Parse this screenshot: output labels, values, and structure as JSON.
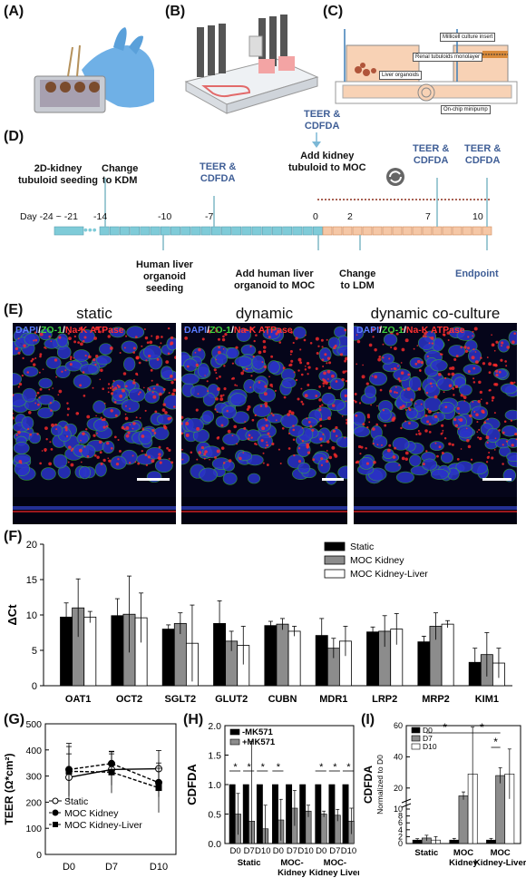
{
  "panels": {
    "a": "(A)",
    "b": "(B)",
    "c": "(C)",
    "d": "(D)",
    "e": "(E)",
    "f": "(F)",
    "g": "(G)",
    "h": "(H)",
    "i": "(I)"
  },
  "panel_c": {
    "millicell": "Millicell culture insert",
    "renal": "Renal tubuloids monolayer",
    "liver": "Liver organoids",
    "pump": "On-chip minipump"
  },
  "timeline": {
    "teer_top": "TEER &\nCDFDA",
    "add_kidney": "Add kidney\ntubuloid to MOC",
    "seeding_2d": "2D-kidney\ntubuloid seeding",
    "change_kdm": "Change\nto KDM",
    "teer_mid": "TEER &\nCDFDA",
    "teer_d7": "TEER &\nCDFDA",
    "teer_d10": "TEER &\nCDFDA",
    "day_label": "Day -24 ~ -21",
    "days": [
      "-14",
      "-10",
      "-7",
      "0",
      "2",
      "7",
      "10"
    ],
    "human_liver_seeding": "Human liver\norganoid\nseeding",
    "add_liver": "Add human liver\norganoid to MOC",
    "change_ldm": "Change\nto LDM",
    "endpoint": "Endpoint",
    "colors": {
      "kdm": "#7fcbd8",
      "ldm": "#f5c7a6",
      "teer": "#3f5e96",
      "endpoint": "#3f5e96"
    }
  },
  "panel_e": {
    "titles": [
      "static",
      "dynamic",
      "dynamic co-culture"
    ],
    "stain_dapi": "DAPI",
    "stain_sep": "/",
    "stain_zo": "ZO-1",
    "stain_na": "Na-K ATPase"
  },
  "chart_data": [
    {
      "id": "F",
      "type": "bar",
      "ylabel": "ΔCt",
      "ylim": [
        0,
        20
      ],
      "yticks": [
        0,
        5,
        10,
        15,
        20
      ],
      "categories": [
        "OAT1",
        "OCT2",
        "SGLT2",
        "GLUT2",
        "CUBN",
        "MDR1",
        "LRP2",
        "MRP2",
        "KIM1"
      ],
      "series": [
        {
          "name": "Static",
          "color": "#000000",
          "values": [
            9.7,
            9.9,
            8.0,
            8.8,
            8.5,
            7.1,
            7.6,
            6.2,
            3.3
          ],
          "err": [
            2.0,
            2.4,
            0.6,
            3.2,
            0.6,
            2.4,
            0.7,
            0.8,
            2.0
          ]
        },
        {
          "name": "MOC Kidney",
          "color": "#8c8c8c",
          "values": [
            11.0,
            10.1,
            8.8,
            6.3,
            8.7,
            5.3,
            7.7,
            8.4,
            4.4
          ],
          "err": [
            4.1,
            5.4,
            1.5,
            1.4,
            0.8,
            1.4,
            2.2,
            1.9,
            3.1
          ]
        },
        {
          "name": "MOC Kidney-Liver",
          "color": "#ffffff",
          "values": [
            9.7,
            9.6,
            6.0,
            5.7,
            7.7,
            6.3,
            8.0,
            8.7,
            3.2
          ],
          "err": [
            0.8,
            3.5,
            5.4,
            2.7,
            0.7,
            2.1,
            2.2,
            0.5,
            2.1
          ]
        }
      ],
      "legend": "top-right"
    },
    {
      "id": "G",
      "type": "line",
      "ylabel": "TEER (Ω*cm²)",
      "ylim": [
        0,
        500
      ],
      "yticks": [
        0,
        100,
        200,
        300,
        400,
        500
      ],
      "categories": [
        "D0",
        "D7",
        "D10"
      ],
      "series": [
        {
          "name": "Static",
          "values": [
            295,
            325,
            328
          ],
          "err": [
            90,
            60,
            70
          ],
          "marker": "open-circle",
          "dash": false
        },
        {
          "name": "MOC Kidney",
          "values": [
            325,
            348,
            275
          ],
          "err": [
            100,
            45,
            55
          ],
          "marker": "filled-circle",
          "dash": true
        },
        {
          "name": "MOC Kidney-Liver",
          "values": [
            318,
            315,
            255
          ],
          "err": [
            95,
            80,
            95
          ],
          "marker": "filled-square",
          "dash": true
        }
      ],
      "legend": "bottom-left"
    },
    {
      "id": "H",
      "type": "bar",
      "ylabel": "CDFDA",
      "ylim": [
        0,
        2.0
      ],
      "yticks": [
        "0.0",
        "0.5",
        "1.0",
        "1.5",
        "2.0"
      ],
      "categories": [
        "D0",
        "D7",
        "D10",
        "D0",
        "D7",
        "D10",
        "D0",
        "D7",
        "D10"
      ],
      "groups": [
        "Static",
        "MOC-\nKidney",
        "MOC-\nKidney Liver"
      ],
      "series": [
        {
          "name": "-MK571",
          "color": "#000000",
          "values": [
            1,
            1,
            1,
            1,
            1,
            1,
            1,
            1,
            1
          ]
        },
        {
          "name": "+MK571",
          "color": "#8c8c8c",
          "values": [
            0.5,
            0.38,
            0.25,
            0.4,
            0.6,
            0.55,
            0.5,
            0.48,
            0.38
          ],
          "err": [
            0.35,
            1.35,
            0.4,
            0.35,
            0.3,
            0.1,
            0.05,
            0.1,
            0.22
          ]
        }
      ],
      "significance": [
        "*",
        "*",
        "*",
        "*",
        "*",
        "*",
        "*"
      ],
      "legend": "top-left"
    },
    {
      "id": "I",
      "type": "bar",
      "ylabel": "CDFDA",
      "ylabel2": "Normalized to D0",
      "yticks": [
        0,
        2,
        4,
        6,
        8,
        10,
        20,
        40,
        60
      ],
      "categories": [
        "Static",
        "MOC\nKidney",
        "MOC\nKidney-Liver"
      ],
      "series": [
        {
          "name": "D0",
          "color": "#000000",
          "values": [
            1,
            1,
            1
          ],
          "err": [
            0.4,
            0.5,
            0.5
          ]
        },
        {
          "name": "D7",
          "color": "#8c8c8c",
          "values": [
            1.6,
            15,
            28
          ],
          "err": [
            0.8,
            2.5,
            5
          ]
        },
        {
          "name": "D10",
          "color": "#ffffff",
          "values": [
            1,
            29,
            29
          ],
          "err": [
            1.0,
            30,
            16
          ]
        }
      ],
      "significance": [
        "*",
        "*",
        "*"
      ],
      "legend": "top-left"
    }
  ]
}
